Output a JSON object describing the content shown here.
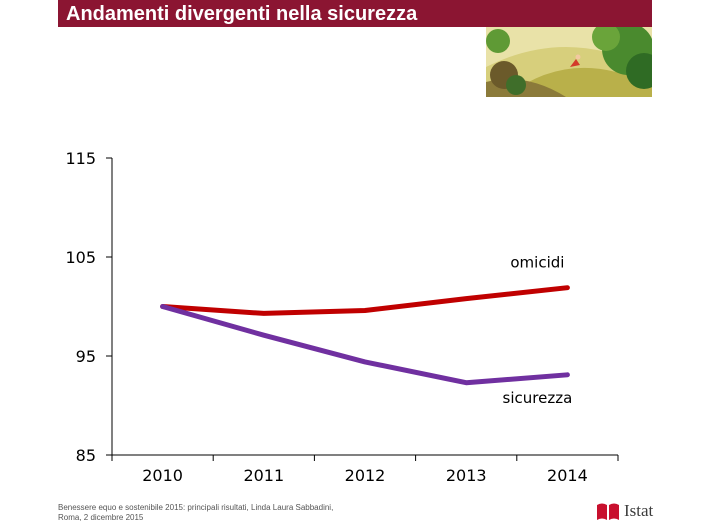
{
  "slide": {
    "title": "Andamenti divergenti nella sicurezza",
    "footer_line1": "Benessere equo e sostenibile 2015: principali risultati, Linda Laura Sabbadini,",
    "footer_line2": "Roma, 2 dicembre 2015",
    "logo_text": "Istat",
    "colors": {
      "title_bar": "#8b1532",
      "logo": "#c8102e"
    }
  },
  "chart_data": {
    "type": "line",
    "title": "",
    "xlabel": "",
    "ylabel": "",
    "x": [
      "2010",
      "2011",
      "2012",
      "2013",
      "2014"
    ],
    "ylim": [
      85,
      115
    ],
    "yticks": [
      85,
      95,
      105,
      115
    ],
    "grid": false,
    "series": [
      {
        "name": "omicidi",
        "values": [
          100,
          99.3,
          99.6,
          100.8,
          101.9
        ],
        "color": "#c00000"
      },
      {
        "name": "sicurezza",
        "values": [
          100,
          97.1,
          94.4,
          92.3,
          93.1
        ],
        "color": "#7030a0"
      }
    ]
  }
}
